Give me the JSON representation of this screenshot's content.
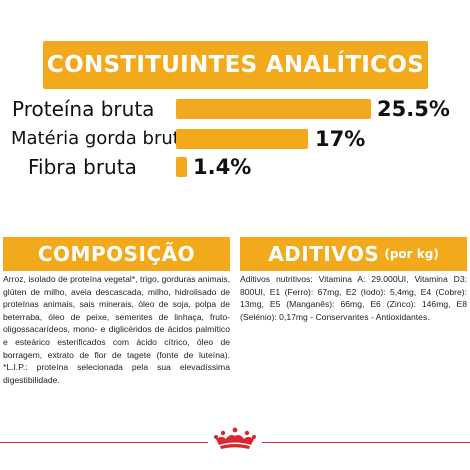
{
  "header": {
    "title": "CONSTITUINTES ANALÍTICOS"
  },
  "analytics": [
    {
      "label": "Proteína bruta",
      "value": "25.5%",
      "percent": 25.5
    },
    {
      "label": "Matéria gorda bruta",
      "value": "17%",
      "percent": 17
    },
    {
      "label": "Fibra bruta",
      "value": "1.4%",
      "percent": 1.4
    }
  ],
  "composition": {
    "title": "COMPOSIÇÃO",
    "text": "Arroz, isolado de proteína vegetal*, trigo, gorduras animais, glúten de milho, aveia descascada, milho, hidrolisado de proteínas animais, sais minerais, óleo de soja, polpa de beterraba, óleo de peixe, sementes de linhaça, fruto-oligossacarídeos, mono- e diglicéridos de ácidos palmítico e esteárico esterificados com ácido cítrico, óleo de borragem, extrato de flor de tagete (fonte de luteína). *L.I.P.: proteína selecionada pela sua elevadíssima digestibilidade."
  },
  "additives": {
    "title": "ADITIVOS",
    "subtitle": "(por kg)",
    "text": "Aditivos nutritivos: Vitamina A: 29.000UI, Vitamina D3: 800UI, E1 (Ferro): 67mg, E2 (Iodo): 5,4mg, E4 (Cobre): 13mg, E5 (Manganês): 66mg, E6 (Zinco): 146mg, E8 (Selénio): 0,17mg - Conservantes - Antioxidantes."
  },
  "logo": {
    "name": "royal-canin-crown-icon"
  },
  "colors": {
    "accent": "#f2aa1c",
    "brand_red": "#d9272e"
  }
}
